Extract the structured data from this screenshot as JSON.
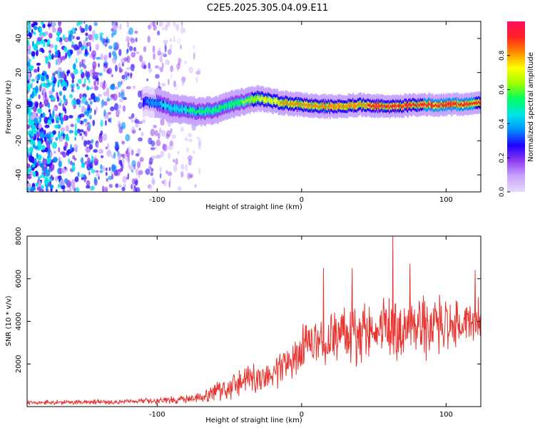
{
  "title": "C2E5.2025.305.04.09.E11",
  "chart_data": [
    {
      "type": "heatmap",
      "name": "spectrogram",
      "xlabel": "Height of straight line (km)",
      "ylabel": "Frequency (Hz)",
      "xlim": [
        -190,
        124
      ],
      "ylim": [
        -50,
        50
      ],
      "xticks": [
        -100,
        0,
        100
      ],
      "xtick_labels": [
        "-100",
        "0",
        "100"
      ],
      "yticks": [
        -40,
        -20,
        0,
        20,
        40
      ],
      "ytick_labels": [
        "-40",
        "-20",
        "0",
        "20",
        "40"
      ],
      "colorbar": {
        "label": "Normalized spectral amplitude",
        "range": [
          0,
          1
        ],
        "ticks": [
          0.0,
          0.2,
          0.4,
          0.6,
          0.8
        ],
        "tick_labels": [
          "0.0",
          "0.2",
          "0.4",
          "0.6",
          "0.8"
        ],
        "colormap": [
          "#e8d8ff",
          "#c9a6ff",
          "#8f3cf2",
          "#2000ff",
          "#0090ff",
          "#00e5e5",
          "#00ff60",
          "#a0ff00",
          "#ffff00",
          "#ff8c00",
          "#ff2020",
          "#ff1060"
        ]
      },
      "ridge": {
        "x": [
          -110,
          -100,
          -90,
          -80,
          -70,
          -60,
          -50,
          -40,
          -30,
          -20,
          -10,
          0,
          20,
          40,
          60,
          80,
          100,
          124
        ],
        "frequency_hz": [
          3,
          2,
          -1,
          -2,
          -3,
          -2,
          1,
          3,
          5,
          3,
          2,
          1,
          0,
          1,
          0,
          1,
          1,
          2
        ],
        "peak_amplitude": [
          0.3,
          0.4,
          0.45,
          0.5,
          0.5,
          0.55,
          0.55,
          0.6,
          0.7,
          0.75,
          0.8,
          0.8,
          0.85,
          0.85,
          0.9,
          0.9,
          0.95,
          0.9
        ]
      },
      "noise_region_x": [
        -190,
        -70
      ]
    },
    {
      "type": "line",
      "name": "snr",
      "xlabel": "Height of straight line (km)",
      "ylabel": "SNR (10 * v/v)",
      "xlim": [
        -190,
        124
      ],
      "ylim": [
        0,
        8000
      ],
      "xticks": [
        -100,
        0,
        100
      ],
      "xtick_labels": [
        "-100",
        "0",
        "100"
      ],
      "yticks": [
        2000,
        4000,
        6000,
        8000
      ],
      "ytick_labels": [
        "2000",
        "4000",
        "6000",
        "8000"
      ],
      "line_color": "#e8332e",
      "envelope": {
        "x": [
          -190,
          -160,
          -130,
          -100,
          -80,
          -70,
          -60,
          -50,
          -40,
          -30,
          -20,
          -10,
          0,
          10,
          20,
          30,
          40,
          50,
          60,
          70,
          80,
          90,
          100,
          110,
          124
        ],
        "base": [
          180,
          200,
          220,
          250,
          350,
          450,
          650,
          900,
          1100,
          1300,
          1600,
          2200,
          2600,
          3100,
          3300,
          3500,
          3400,
          3500,
          3600,
          3700,
          3700,
          3800,
          3900,
          3900,
          4100
        ],
        "amplitude": [
          120,
          130,
          150,
          170,
          250,
          350,
          500,
          700,
          900,
          1000,
          1100,
          1300,
          1400,
          1500,
          1600,
          1700,
          1700,
          1800,
          1800,
          1800,
          1700,
          1700,
          1600,
          1500,
          1500
        ]
      },
      "notable_peaks": [
        {
          "x": 15,
          "y": 6500
        },
        {
          "x": 35,
          "y": 6500
        },
        {
          "x": 63,
          "y": 8000
        },
        {
          "x": 75,
          "y": 6700
        },
        {
          "x": 120,
          "y": 6400
        }
      ]
    }
  ]
}
